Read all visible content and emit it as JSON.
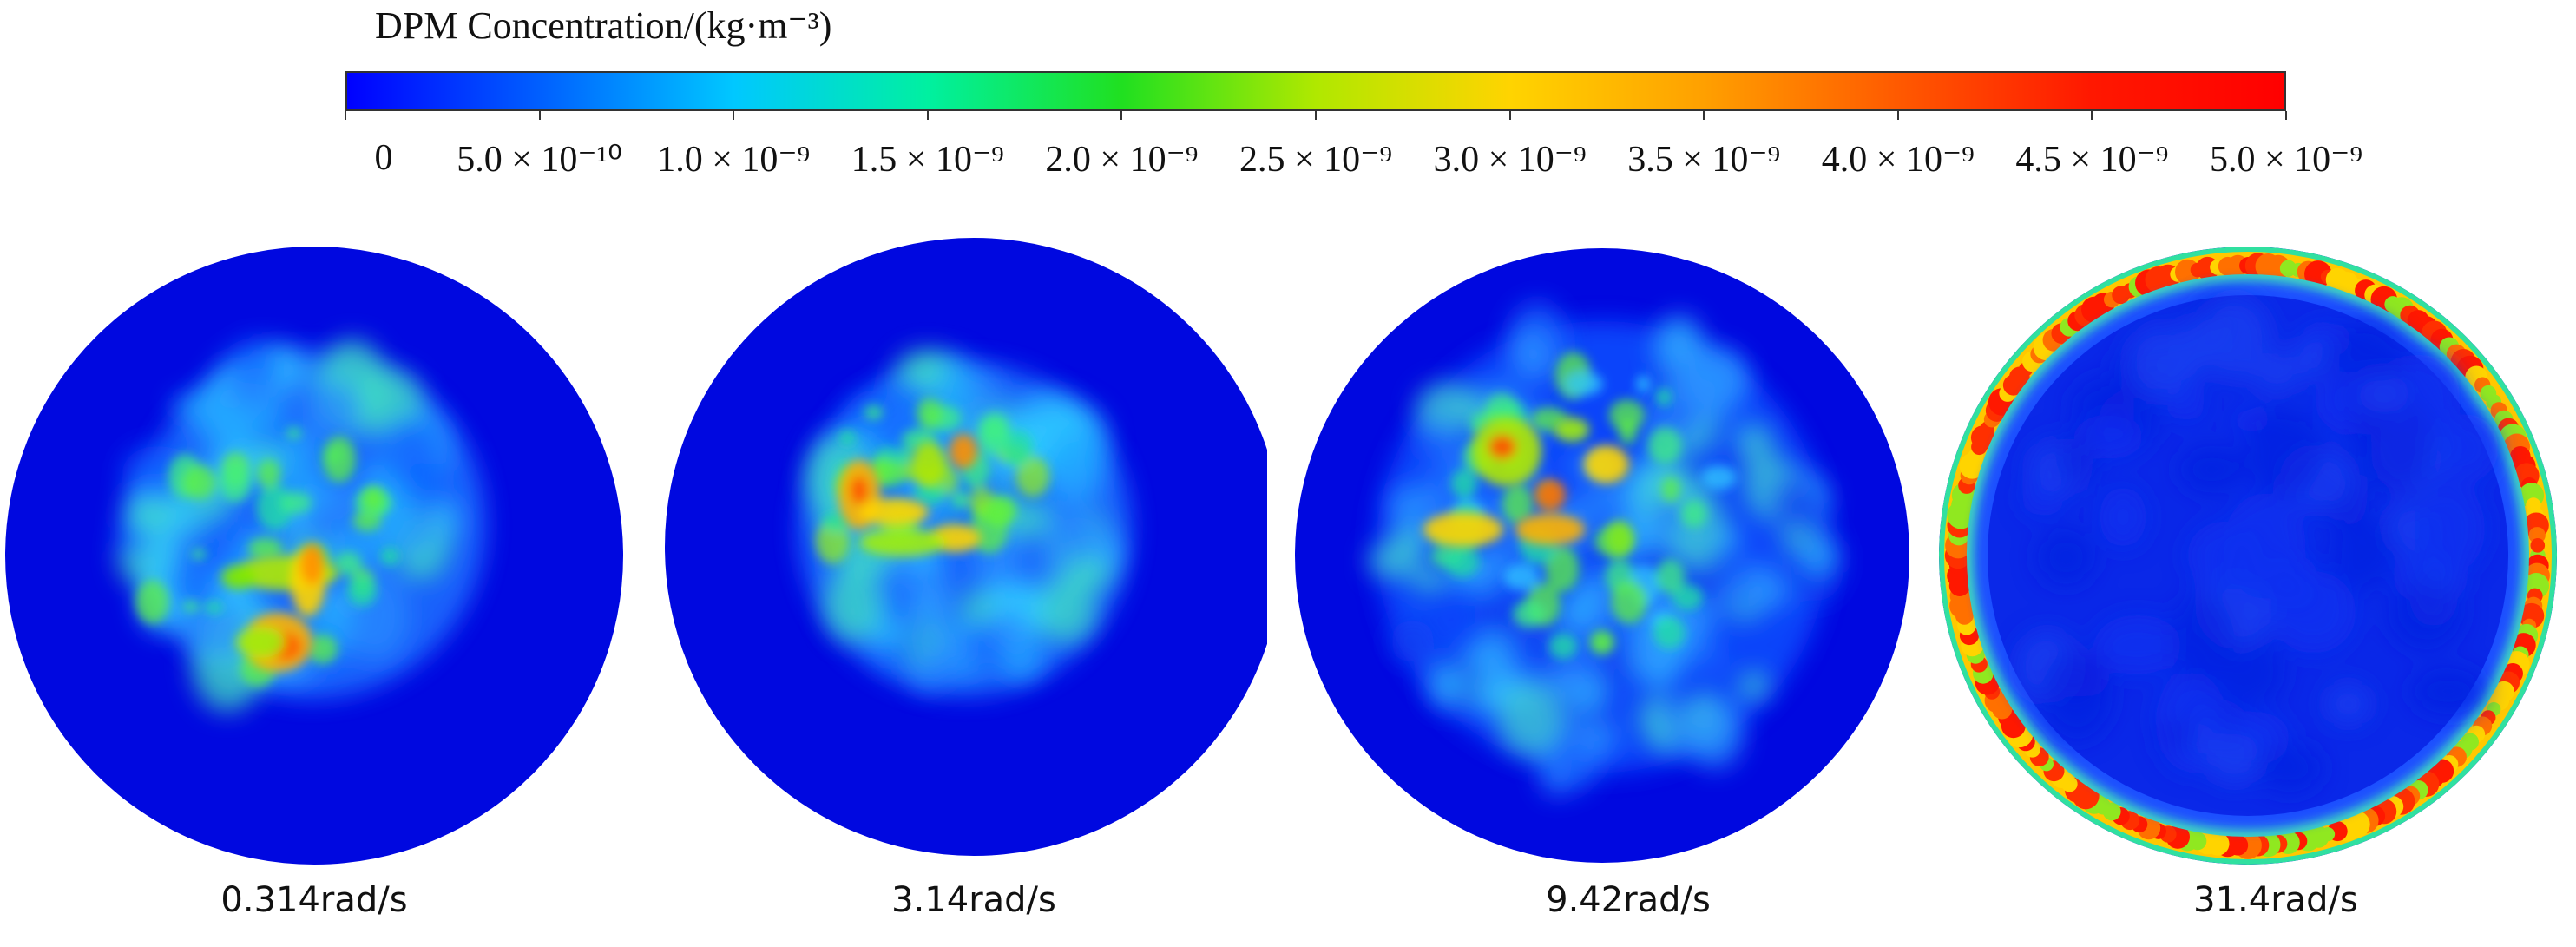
{
  "colorbar": {
    "title": "DPM Concentration/(kg·m⁻³)",
    "ticks": [
      "0",
      "5.0 × 10⁻¹⁰",
      "1.0 × 10⁻⁹",
      "1.5 × 10⁻⁹",
      "2.0 × 10⁻⁹",
      "2.5 × 10⁻⁹",
      "3.0 × 10⁻⁹",
      "3.5 × 10⁻⁹",
      "4.0 × 10⁻⁹",
      "4.5 × 10⁻⁹",
      "5.0 × 10⁻⁹"
    ],
    "range": [
      0,
      5e-09
    ],
    "colormap": [
      "#0000ff",
      "#0060ff",
      "#00c8ff",
      "#00f0a0",
      "#20e020",
      "#b0e800",
      "#ffd400",
      "#ffa000",
      "#ff5a00",
      "#ff1800",
      "#ff0000"
    ]
  },
  "panels": [
    {
      "label": "0.314rad/s",
      "pattern": "central-core-with-dense-streak"
    },
    {
      "label": "3.14rad/s",
      "pattern": "central-core-dense-upper-left"
    },
    {
      "label": "9.42rad/s",
      "pattern": "spread-core-dense-upper-left"
    },
    {
      "label": "31.4rad/s",
      "pattern": "dense-ring-at-wall"
    }
  ],
  "colors": {
    "background_field": "#0008e0",
    "outline": "#ffffff"
  }
}
